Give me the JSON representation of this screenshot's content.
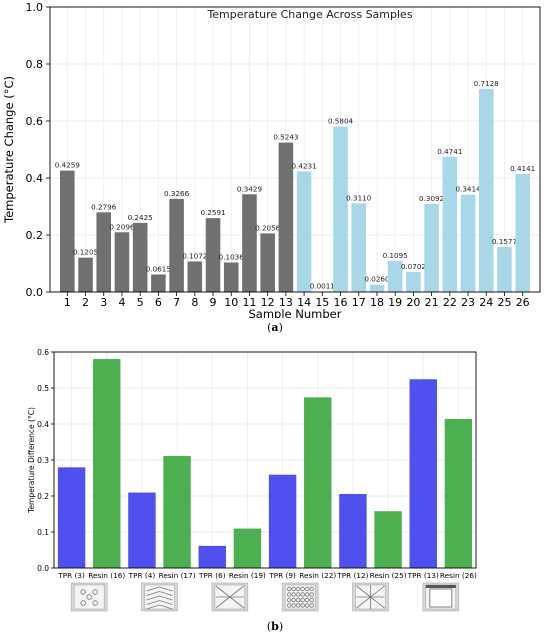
{
  "chart_data": [
    {
      "type": "bar",
      "title": "Temperature Change Across Samples",
      "xlabel": "Sample Number",
      "ylabel": "Temperature Change (°C)",
      "ylim": [
        0,
        1.0
      ],
      "yticks": [
        "0.0",
        "0.2",
        "0.4",
        "0.6",
        "0.8",
        "1.0"
      ],
      "grid": true,
      "categories": [
        "1",
        "2",
        "3",
        "4",
        "5",
        "6",
        "7",
        "8",
        "9",
        "10",
        "11",
        "12",
        "13",
        "14",
        "15",
        "16",
        "17",
        "18",
        "19",
        "20",
        "21",
        "22",
        "23",
        "24",
        "25",
        "26"
      ],
      "values": [
        0.4259,
        0.1205,
        0.2796,
        0.2096,
        0.2425,
        0.0615,
        0.3266,
        0.1072,
        0.2591,
        0.1036,
        0.3429,
        0.2056,
        0.5243,
        0.4231,
        0.0011,
        0.5804,
        0.311,
        0.026,
        0.1095,
        0.0702,
        0.3092,
        0.4741,
        0.3414,
        0.7128,
        0.1577,
        0.4141
      ],
      "labels": [
        "0.4259",
        "0.1205",
        "0.2796",
        "0.2096",
        "0.2425",
        "0.0615",
        "0.3266",
        "0.1072",
        "0.2591",
        "0.1036",
        "0.3429",
        "0.2056",
        "0.5243",
        "0.4231",
        "0.0011",
        "0.5804",
        "0.3110",
        "0.0260",
        "0.1095",
        "0.0702",
        "0.3092",
        "0.4741",
        "0.3414",
        "0.7128",
        "0.1577",
        "0.4141"
      ],
      "colors": [
        "#707070",
        "#707070",
        "#707070",
        "#707070",
        "#707070",
        "#707070",
        "#707070",
        "#707070",
        "#707070",
        "#707070",
        "#707070",
        "#707070",
        "#707070",
        "#a8d8e8",
        "#a8d8e8",
        "#a8d8e8",
        "#a8d8e8",
        "#a8d8e8",
        "#a8d8e8",
        "#a8d8e8",
        "#a8d8e8",
        "#a8d8e8",
        "#a8d8e8",
        "#a8d8e8",
        "#a8d8e8",
        "#a8d8e8"
      ],
      "caption_label": "a"
    },
    {
      "type": "bar",
      "title": "",
      "xlabel": "",
      "ylabel": "Temperature Difference (°C)",
      "ylim": [
        0,
        0.6
      ],
      "yticks": [
        "0.0",
        "0.1",
        "0.2",
        "0.3",
        "0.4",
        "0.5",
        "0.6"
      ],
      "grid": true,
      "categories": [
        "TPR (3)",
        "Resin (16)",
        "TPR (4)",
        "Resin (17)",
        "TPR (6)",
        "Resin (19)",
        "TPR (9)",
        "Resin (22)",
        "TPR (12)",
        "Resin (25)",
        "TPR (13)",
        "Resin (26)"
      ],
      "values": [
        0.2796,
        0.5804,
        0.2096,
        0.311,
        0.0615,
        0.1095,
        0.2591,
        0.4741,
        0.2056,
        0.1577,
        0.5243,
        0.4141
      ],
      "colors": [
        "#5050f0",
        "#4caf50",
        "#5050f0",
        "#4caf50",
        "#5050f0",
        "#4caf50",
        "#5050f0",
        "#4caf50",
        "#5050f0",
        "#4caf50",
        "#5050f0",
        "#4caf50"
      ],
      "thumbnails": [
        "holes-icon",
        "chevron-pattern-icon",
        "x-brace-icon",
        "grid-lattice-icon",
        "star-brace-icon",
        "frame-box-icon"
      ],
      "caption_label": "b"
    }
  ]
}
